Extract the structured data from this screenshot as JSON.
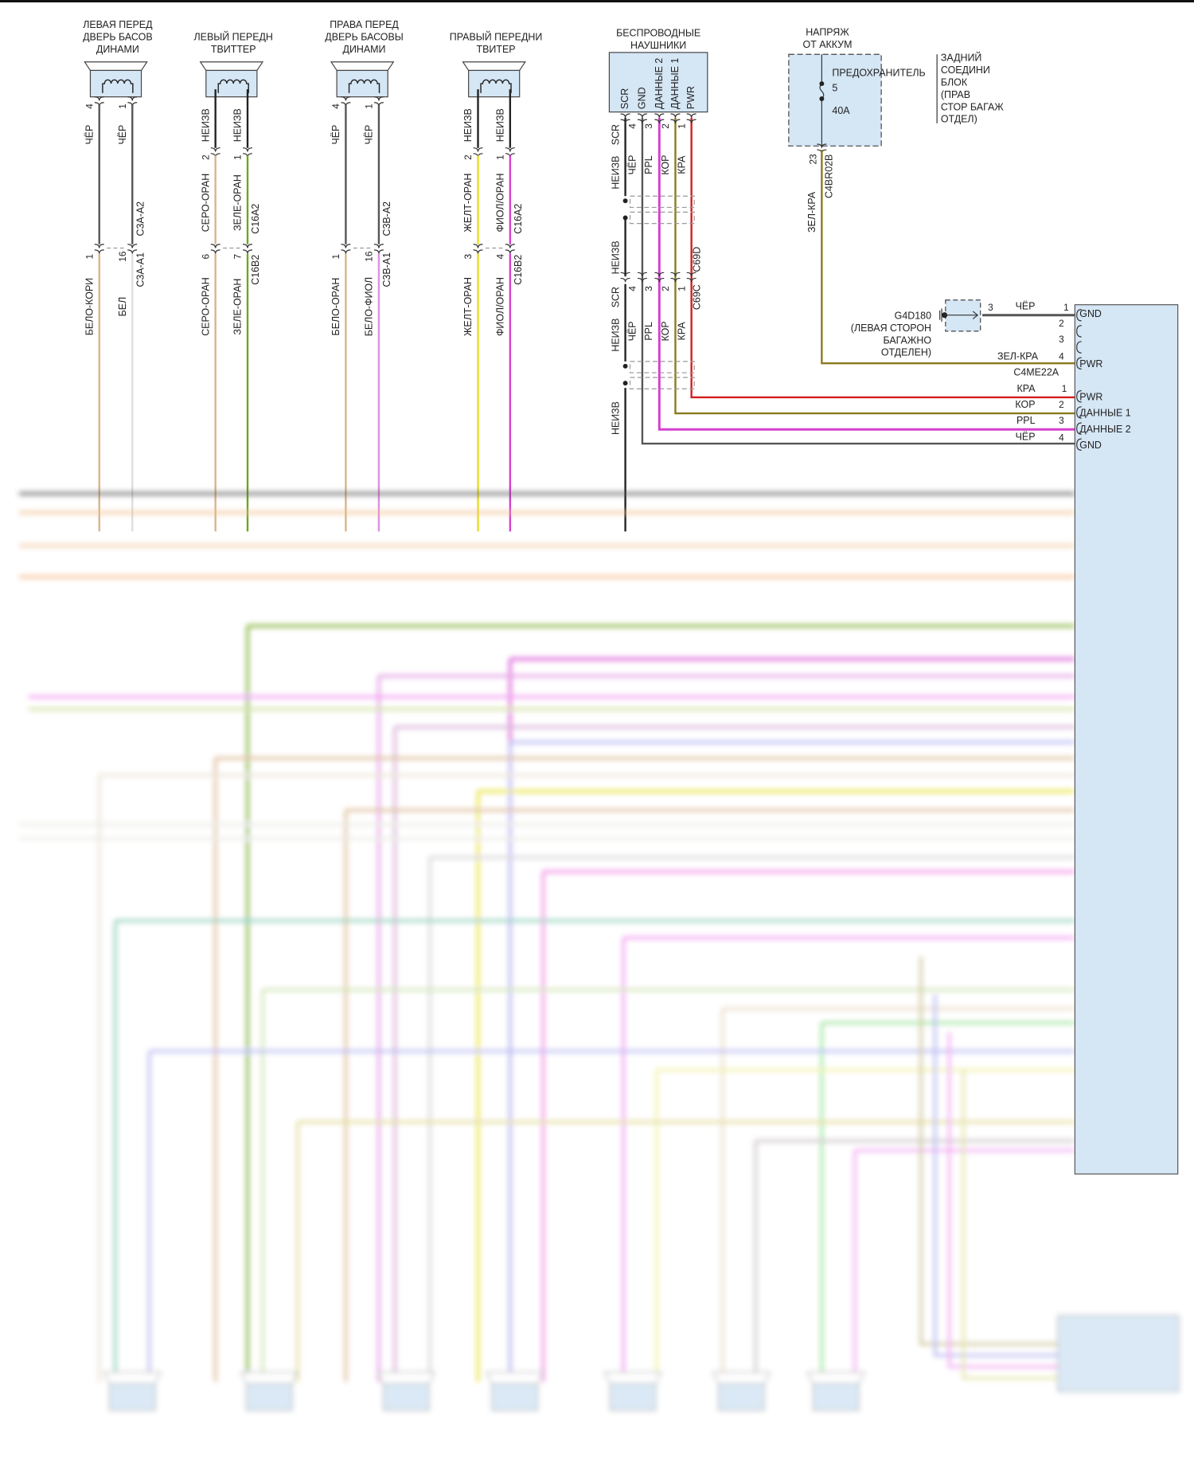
{
  "speakers": [
    {
      "title": [
        "ЛЕВАЯ ПЕРЕД",
        "ДВЕРЬ БАСОВ",
        "ДИНАМИ"
      ],
      "top_pins": [
        "4",
        "1"
      ],
      "top_wires": [
        "ЧЁР",
        "ЧЁР"
      ],
      "connector_a": "C3A-A2",
      "bottom_pins": [
        "1",
        "16"
      ],
      "connector_b": "C3A-A1",
      "bottom_wires": [
        "БЕЛО-КОРИ",
        "БЕЛ"
      ]
    },
    {
      "title": [
        "ЛЕВЫЙ ПЕРЕДН",
        "ТВИТТЕР"
      ],
      "lead_wires": [
        "НЕИЗВ",
        "НЕИЗВ"
      ],
      "top_pins": [
        "2",
        "1"
      ],
      "top_wires": [
        "СЕРО-ОРАН",
        "ЗЕЛЕ-ОРАН"
      ],
      "connector_a": "C16A2",
      "bottom_pins": [
        "6",
        "7"
      ],
      "connector_b": "C16B2",
      "bottom_wires": [
        "СЕРО-ОРАН",
        "ЗЕЛЕ-ОРАН"
      ]
    },
    {
      "title": [
        "ПРАВА ПЕРЕД",
        "ДВЕРЬ БАСОВЫ",
        "ДИНАМИ"
      ],
      "top_pins": [
        "4",
        "1"
      ],
      "top_wires": [
        "ЧЁР",
        "ЧЁР"
      ],
      "connector_a": "C3B-A2",
      "bottom_pins": [
        "1",
        "16"
      ],
      "connector_b": "C3B-A1",
      "bottom_wires": [
        "БЕЛО-ОРАН",
        "БЕЛО-ФИОЛ"
      ]
    },
    {
      "title": [
        "ПРАВЫЙ ПЕРЕДНИ",
        "ТВИТЕР"
      ],
      "lead_wires": [
        "НЕИЗВ",
        "НЕИЗВ"
      ],
      "top_pins": [
        "2",
        "1"
      ],
      "top_wires": [
        "ЖЕЛТ-ОРАН",
        "ФИОЛ/ОРАН"
      ],
      "connector_a": "C16A2",
      "bottom_pins": [
        "3",
        "4"
      ],
      "connector_b": "C16B2",
      "bottom_wires": [
        "ЖЕЛТ-ОРАН",
        "ФИОЛ/ОРАН"
      ]
    }
  ],
  "headphones": {
    "title": [
      "БЕСПРОВОДНЫЕ",
      "НАУШНИКИ"
    ],
    "pin_names": [
      "SCR",
      "GND",
      "ДАННЫЕ 2",
      "ДАННЫЕ 1",
      "PWR"
    ],
    "pins": [
      "4",
      "3",
      "2",
      "1"
    ],
    "shield_label": "SCR",
    "shield_wire": "НЕИЗВ",
    "wires": [
      "ЧЁР",
      "PPL",
      "КОР",
      "КРА"
    ],
    "connector_top": "C69D",
    "connector_bottom": "C69C"
  },
  "fuse_block": {
    "title": [
      "НАПРЯЖ",
      "ОТ АККУМ"
    ],
    "location": [
      "ЗАДНИЙ",
      "СОЕДИНИ",
      "БЛОК",
      "(ПРАВ",
      "СТОР БАГАЖ",
      "ОТДЕЛ)"
    ],
    "fuse_label": "ПРЕДОХРАНИТЕЛЬ",
    "fuse_number": "5",
    "fuse_rating": "40A",
    "pin": "23",
    "connector": "C4BR02B",
    "wire": "ЗЕЛ-КРА"
  },
  "ground": {
    "name": "G4D180",
    "location": [
      "(ЛЕВАЯ СТОРОН",
      "БАГАЖНО",
      "ОТДЕЛЕН)"
    ],
    "pin": "3",
    "wire": "ЧЁР"
  },
  "module": {
    "connector_a": {
      "name": "C4ME22A",
      "pins": [
        "1",
        "2",
        "3",
        "4"
      ],
      "wires": [
        "ЧЁР",
        "",
        "",
        "ЗЕЛ-КРА"
      ],
      "functions": [
        "GND",
        "",
        "",
        "PWR"
      ]
    },
    "connector_b": {
      "pins": [
        "1",
        "2",
        "3",
        "4"
      ],
      "wires": [
        "КРА",
        "КОР",
        "PPL",
        "ЧЁР"
      ],
      "functions": [
        "PWR",
        "ДАННЫЕ 1",
        "ДАННЫЕ 2",
        "GND"
      ]
    }
  },
  "colors": {
    "black": "#222222",
    "gray": "#555555",
    "tan": "#d9b48a",
    "white": "#dddddd",
    "green": "#6fa51f",
    "magenta": "#d63fd0",
    "light_magenta": "#e08ee0",
    "yellow": "#e6de1e",
    "olive": "#8a7a1e",
    "red": "#d41c1c",
    "box_fill": "#d5e6f5"
  }
}
